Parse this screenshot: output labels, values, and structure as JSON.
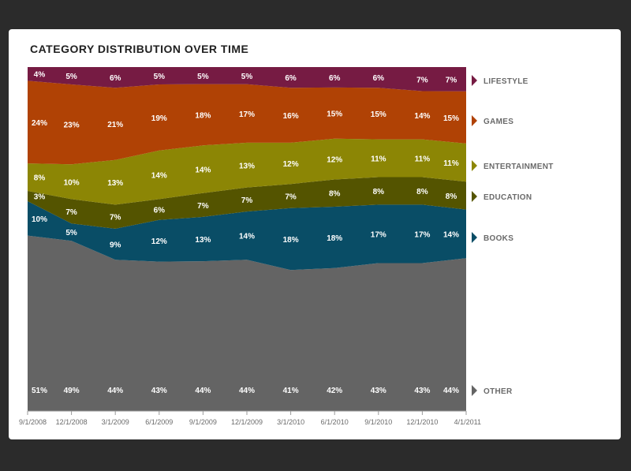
{
  "chart_data": {
    "type": "area",
    "title": "CATEGORY DISTRIBUTION OVER TIME",
    "categories": [
      "9/1/2008",
      "12/1/2008",
      "3/1/2009",
      "6/1/2009",
      "9/1/2009",
      "12/1/2009",
      "3/1/2010",
      "6/1/2010",
      "9/1/2010",
      "12/1/2010",
      "4/1/2011"
    ],
    "stacked": true,
    "ylim": [
      0,
      100
    ],
    "legend_position": "right",
    "series": [
      {
        "name": "OTHER",
        "color": "#646464",
        "values": [
          51,
          49,
          44,
          43,
          44,
          44,
          41,
          42,
          43,
          43,
          44
        ]
      },
      {
        "name": "BOOKS",
        "color": "#094d66",
        "values": [
          10,
          5,
          9,
          12,
          13,
          14,
          18,
          18,
          17,
          17,
          14
        ]
      },
      {
        "name": "EDUCATION",
        "color": "#545400",
        "values": [
          3,
          7,
          7,
          6,
          7,
          7,
          7,
          8,
          8,
          8,
          8
        ]
      },
      {
        "name": "ENTERTAINMENT",
        "color": "#8c8605",
        "values": [
          8,
          10,
          13,
          14,
          14,
          13,
          12,
          12,
          11,
          11,
          11
        ]
      },
      {
        "name": "GAMES",
        "color": "#b04205",
        "values": [
          24,
          23,
          21,
          19,
          18,
          17,
          16,
          15,
          15,
          14,
          15
        ]
      },
      {
        "name": "LIFESTYLE",
        "color": "#761b43",
        "values": [
          4,
          5,
          6,
          5,
          5,
          5,
          6,
          6,
          6,
          7,
          7
        ]
      }
    ]
  }
}
